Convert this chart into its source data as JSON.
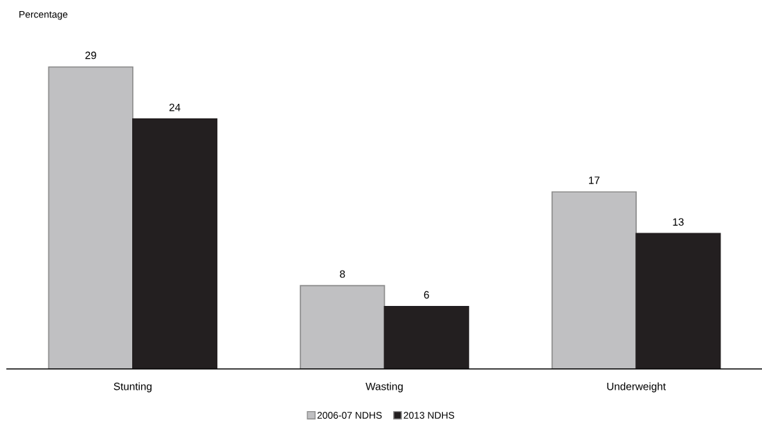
{
  "chart_data": {
    "type": "bar",
    "ylabel": "Percentage",
    "categories": [
      "Stunting",
      "Wasting",
      "Underweight"
    ],
    "series": [
      {
        "name": "2006-07 NDHS",
        "color": "#c0c0c2",
        "values": [
          29,
          8,
          17
        ]
      },
      {
        "name": "2013 NDHS",
        "color": "#231f20",
        "values": [
          24,
          6,
          13
        ]
      }
    ],
    "data_labels": true,
    "legend": "bottom",
    "grid": false,
    "tick_labels": "x"
  }
}
